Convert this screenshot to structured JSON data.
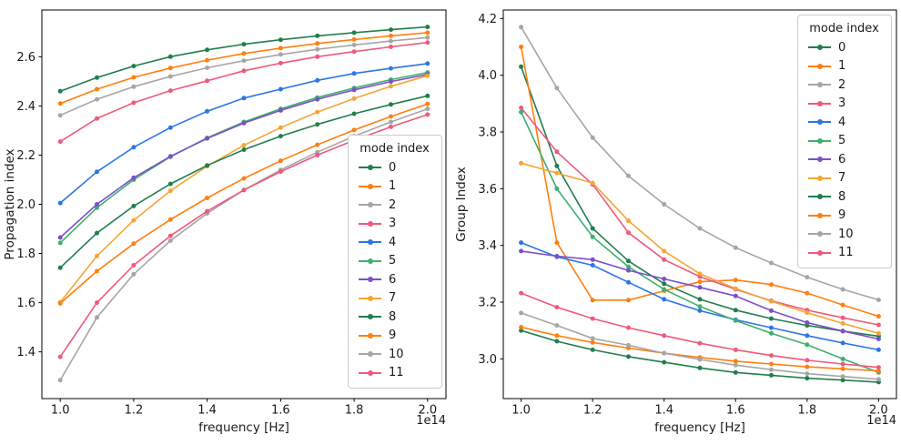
{
  "chart_data": [
    {
      "name": "propagation-index",
      "type": "line",
      "xlabel": "frequency [Hz]",
      "ylabel": "Propagation index",
      "x_offset_text": "1e14",
      "legend": {
        "title": "mode index",
        "position": "lower right"
      },
      "x": [
        1.0,
        1.1,
        1.2,
        1.3,
        1.4,
        1.5,
        1.6,
        1.7,
        1.8,
        1.9,
        2.0
      ],
      "xlim": [
        0.95,
        2.05
      ],
      "ylim": [
        1.21,
        2.79
      ],
      "xticks": [
        1.0,
        1.2,
        1.4,
        1.6,
        1.8,
        2.0
      ],
      "yticks": [
        1.4,
        1.6,
        1.8,
        2.0,
        2.2,
        2.4,
        2.6
      ],
      "grid": false,
      "series": [
        {
          "name": "0",
          "color": "#207f4c",
          "values": [
            2.46,
            2.515,
            2.562,
            2.6,
            2.628,
            2.651,
            2.669,
            2.685,
            2.698,
            2.71,
            2.721
          ]
        },
        {
          "name": "1",
          "color": "#ff7f0e",
          "values": [
            2.41,
            2.468,
            2.516,
            2.554,
            2.586,
            2.613,
            2.635,
            2.654,
            2.67,
            2.685,
            2.698
          ]
        },
        {
          "name": "2",
          "color": "#a6a6a6",
          "values": [
            2.362,
            2.427,
            2.478,
            2.52,
            2.555,
            2.584,
            2.609,
            2.63,
            2.648,
            2.664,
            2.678
          ]
        },
        {
          "name": "3",
          "color": "#ef597b",
          "values": [
            2.255,
            2.349,
            2.413,
            2.462,
            2.502,
            2.543,
            2.574,
            2.6,
            2.621,
            2.64,
            2.658
          ]
        },
        {
          "name": "4",
          "color": "#2b76e5",
          "values": [
            2.005,
            2.132,
            2.232,
            2.312,
            2.378,
            2.432,
            2.468,
            2.504,
            2.532,
            2.553,
            2.572
          ]
        },
        {
          "name": "5",
          "color": "#3eb06d",
          "values": [
            1.843,
            1.986,
            2.1,
            2.193,
            2.27,
            2.335,
            2.388,
            2.434,
            2.473,
            2.507,
            2.536
          ]
        },
        {
          "name": "6",
          "color": "#7d4fc9",
          "values": [
            1.865,
            2.0,
            2.108,
            2.195,
            2.268,
            2.33,
            2.382,
            2.427,
            2.465,
            2.499,
            2.528
          ]
        },
        {
          "name": "7",
          "color": "#f4a536",
          "values": [
            1.602,
            1.79,
            1.935,
            2.055,
            2.155,
            2.24,
            2.312,
            2.375,
            2.43,
            2.48,
            2.523
          ]
        },
        {
          "name": "8",
          "color": "#207f4c",
          "values": [
            1.742,
            1.883,
            1.993,
            2.083,
            2.158,
            2.222,
            2.277,
            2.325,
            2.368,
            2.406,
            2.441
          ]
        },
        {
          "name": "9",
          "color": "#ff7f0e",
          "values": [
            1.597,
            1.728,
            1.84,
            1.938,
            2.026,
            2.105,
            2.177,
            2.242,
            2.302,
            2.357,
            2.408
          ]
        },
        {
          "name": "10",
          "color": "#a6a6a6",
          "values": [
            1.285,
            1.54,
            1.716,
            1.852,
            1.963,
            2.058,
            2.14,
            2.212,
            2.277,
            2.335,
            2.388
          ]
        },
        {
          "name": "11",
          "color": "#ef597b",
          "values": [
            1.38,
            1.6,
            1.752,
            1.872,
            1.972,
            2.058,
            2.133,
            2.2,
            2.26,
            2.315,
            2.365
          ]
        }
      ]
    },
    {
      "name": "group-index",
      "type": "line",
      "xlabel": "frequency [Hz]",
      "ylabel": "Group Index",
      "x_offset_text": "1e14",
      "legend": {
        "title": "mode index",
        "position": "upper right"
      },
      "x": [
        1.0,
        1.1,
        1.2,
        1.3,
        1.4,
        1.5,
        1.6,
        1.7,
        1.8,
        1.9,
        2.0
      ],
      "xlim": [
        0.95,
        2.05
      ],
      "ylim": [
        2.86,
        4.23
      ],
      "xticks": [
        1.0,
        1.2,
        1.4,
        1.6,
        1.8,
        2.0
      ],
      "yticks": [
        3.0,
        3.2,
        3.4,
        3.6,
        3.8,
        4.0,
        4.2
      ],
      "grid": false,
      "series": [
        {
          "name": "0",
          "color": "#207f4c",
          "values": [
            4.03,
            3.68,
            3.46,
            3.345,
            3.265,
            3.21,
            3.172,
            3.142,
            3.118,
            3.098,
            3.08
          ]
        },
        {
          "name": "1",
          "color": "#ff7f0e",
          "values": [
            4.1,
            3.41,
            3.207,
            3.207,
            3.24,
            3.272,
            3.278,
            3.262,
            3.232,
            3.19,
            3.15
          ]
        },
        {
          "name": "2",
          "color": "#a6a6a6",
          "values": [
            4.17,
            3.955,
            3.78,
            3.645,
            3.545,
            3.46,
            3.392,
            3.338,
            3.288,
            3.245,
            3.208
          ]
        },
        {
          "name": "3",
          "color": "#ef597b",
          "values": [
            3.885,
            3.73,
            3.615,
            3.445,
            3.35,
            3.29,
            3.245,
            3.205,
            3.172,
            3.145,
            3.12
          ]
        },
        {
          "name": "4",
          "color": "#2b76e5",
          "values": [
            3.41,
            3.36,
            3.33,
            3.27,
            3.21,
            3.17,
            3.138,
            3.11,
            3.082,
            3.056,
            3.032
          ]
        },
        {
          "name": "5",
          "color": "#3eb06d",
          "values": [
            3.87,
            3.6,
            3.43,
            3.325,
            3.245,
            3.185,
            3.135,
            3.09,
            3.05,
            3.0,
            2.952
          ]
        },
        {
          "name": "6",
          "color": "#7d4fc9",
          "values": [
            3.38,
            3.362,
            3.35,
            3.312,
            3.282,
            3.252,
            3.222,
            3.17,
            3.128,
            3.098,
            3.07
          ]
        },
        {
          "name": "7",
          "color": "#f4a536",
          "values": [
            3.69,
            3.655,
            3.62,
            3.487,
            3.38,
            3.3,
            3.248,
            3.203,
            3.163,
            3.125,
            3.09
          ]
        },
        {
          "name": "8",
          "color": "#207f4c",
          "values": [
            3.1,
            3.062,
            3.032,
            3.008,
            2.988,
            2.968,
            2.952,
            2.942,
            2.932,
            2.925,
            2.918
          ]
        },
        {
          "name": "9",
          "color": "#ff7f0e",
          "values": [
            3.112,
            3.082,
            3.058,
            3.038,
            3.02,
            3.005,
            2.992,
            2.982,
            2.972,
            2.965,
            2.958
          ]
        },
        {
          "name": "10",
          "color": "#a6a6a6",
          "values": [
            3.162,
            3.118,
            3.072,
            3.048,
            3.02,
            2.998,
            2.978,
            2.962,
            2.948,
            2.938,
            2.928
          ]
        },
        {
          "name": "11",
          "color": "#ef597b",
          "values": [
            3.232,
            3.182,
            3.142,
            3.11,
            3.082,
            3.055,
            3.032,
            3.012,
            2.995,
            2.982,
            2.97
          ]
        }
      ]
    }
  ]
}
